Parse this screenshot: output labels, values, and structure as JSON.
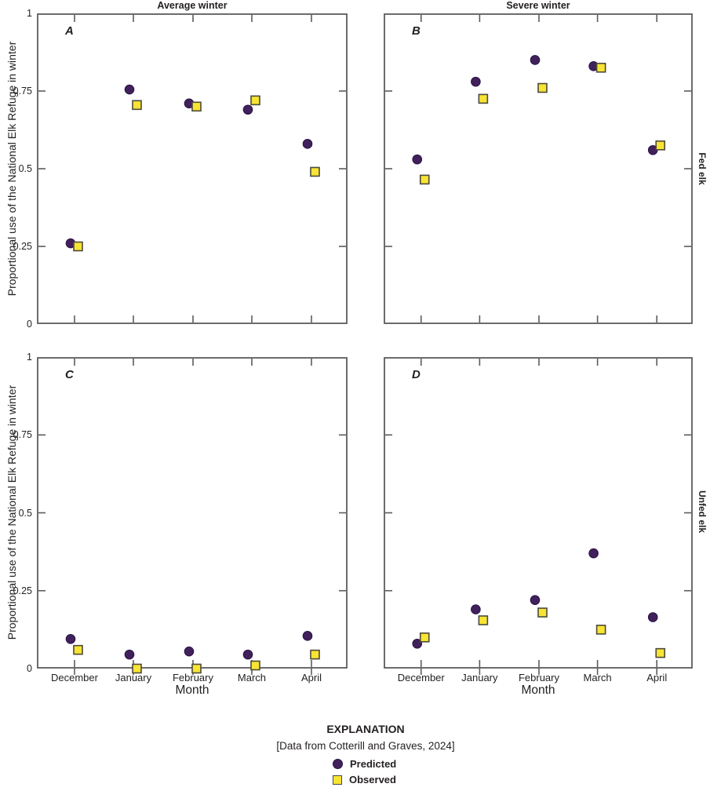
{
  "figure": {
    "explanation": {
      "heading": "EXPLANATION",
      "source_note": "[Data from Cotterill and Graves, 2024]",
      "items": [
        {
          "label": "Predicted",
          "marker": "circle-icon",
          "color": "#40215c"
        },
        {
          "label": "Observed",
          "marker": "square-icon",
          "color": "#f8e433"
        }
      ]
    }
  },
  "chart_data": {
    "type": "scatter",
    "categories": [
      "December",
      "January",
      "February",
      "March",
      "April"
    ],
    "xlabel": "Month",
    "ylabel": "Proportional use of the National Elk Refuge in winter",
    "ylim": [
      0,
      1
    ],
    "yticks": [
      0,
      0.25,
      0.5,
      0.75,
      1
    ],
    "ytick_labels": [
      "0",
      "0.25",
      "0.5",
      "0.75",
      "1"
    ],
    "col_titles": [
      "Average winter",
      "Severe winter"
    ],
    "row_titles": [
      "Fed elk",
      "Unfed elk"
    ],
    "legend": {
      "position": "bottom",
      "entries": [
        "Predicted",
        "Observed"
      ]
    },
    "colors": {
      "predicted": "#40215c",
      "predicted_edge": "#2a1244",
      "observed": "#f8e433",
      "observed_edge": "#4c4a3a",
      "axis": "#5c5c5e",
      "text": "#231f20"
    },
    "panels": [
      {
        "label": "A",
        "column": "Average winter",
        "row": "Fed elk",
        "series": [
          {
            "name": "Predicted",
            "values": [
              0.26,
              0.755,
              0.71,
              0.69,
              0.58
            ]
          },
          {
            "name": "Observed",
            "values": [
              0.25,
              0.705,
              0.7,
              0.72,
              0.49
            ]
          }
        ]
      },
      {
        "label": "B",
        "column": "Severe winter",
        "row": "Fed elk",
        "series": [
          {
            "name": "Predicted",
            "values": [
              0.53,
              0.78,
              0.85,
              0.83,
              0.56
            ]
          },
          {
            "name": "Observed",
            "values": [
              0.465,
              0.725,
              0.76,
              0.825,
              0.575
            ]
          }
        ]
      },
      {
        "label": "C",
        "column": "Average winter",
        "row": "Unfed elk",
        "series": [
          {
            "name": "Predicted",
            "values": [
              0.095,
              0.045,
              0.055,
              0.045,
              0.105
            ]
          },
          {
            "name": "Observed",
            "values": [
              0.06,
              0.0,
              0.0,
              0.01,
              0.045
            ]
          }
        ]
      },
      {
        "label": "D",
        "column": "Severe winter",
        "row": "Unfed elk",
        "series": [
          {
            "name": "Predicted",
            "values": [
              0.08,
              0.19,
              0.22,
              0.37,
              0.165
            ]
          },
          {
            "name": "Observed",
            "values": [
              0.1,
              0.155,
              0.18,
              0.125,
              0.05
            ]
          }
        ]
      }
    ]
  }
}
